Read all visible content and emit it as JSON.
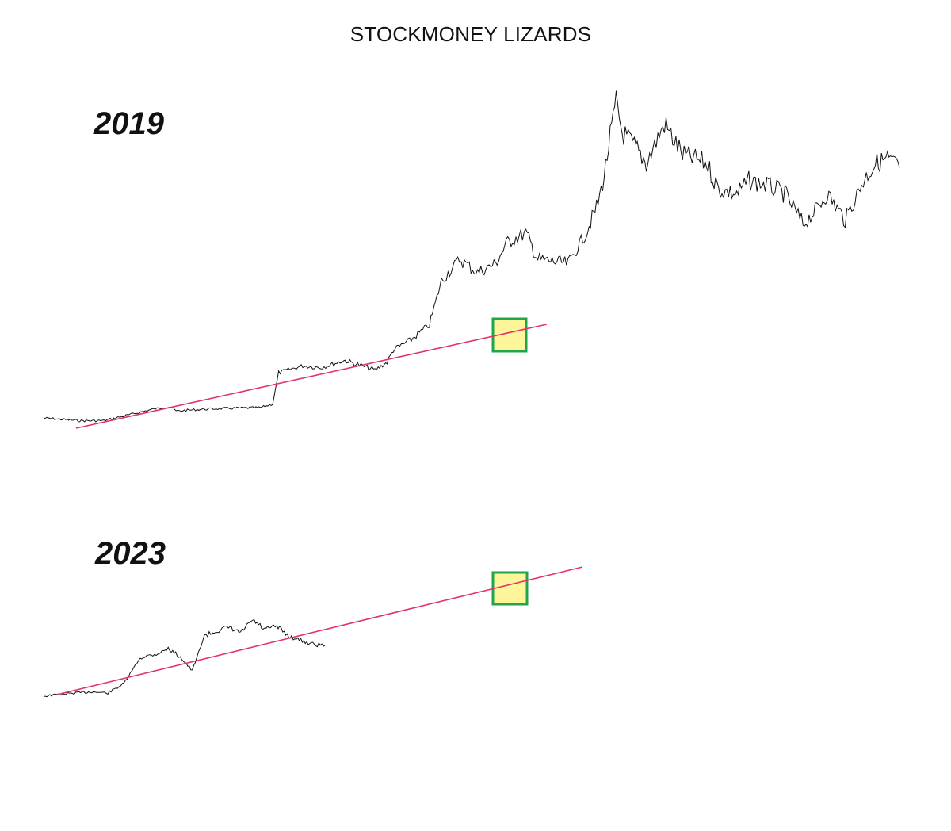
{
  "title": "STOCKMONEY LIZARDS",
  "colors": {
    "price_line": "#111111",
    "trend_line": "#e0336a",
    "box_fill": "#fdf59a",
    "box_stroke": "#1fa64a"
  },
  "chart_data": [
    {
      "type": "line",
      "label": "2019",
      "x": [
        0,
        0.06,
        0.1,
        0.15,
        0.18,
        0.21,
        0.22,
        0.26,
        0.3,
        0.36,
        0.38,
        0.39,
        0.43,
        0.46,
        0.5,
        0.55,
        0.57,
        0.58,
        0.61,
        0.64,
        0.66,
        0.69,
        0.72,
        0.75,
        0.77,
        0.8,
        0.82,
        0.87,
        0.9,
        0.92,
        0.93,
        0.94,
        0.95,
        0.96,
        0.98,
        1.0,
        1.03,
        1.06,
        1.1,
        1.12,
        1.15,
        1.17,
        1.2,
        1.23,
        1.26,
        1.28,
        1.3,
        1.33,
        1.36,
        1.38,
        1.4,
        1.42
      ],
      "values": [
        0.08,
        0.05,
        0.05,
        0.13,
        0.18,
        0.21,
        0.16,
        0.18,
        0.19,
        0.2,
        0.24,
        0.6,
        0.68,
        0.66,
        0.74,
        0.63,
        0.72,
        0.86,
        0.98,
        1.15,
        1.65,
        1.9,
        1.75,
        1.85,
        2.1,
        2.2,
        1.9,
        1.85,
        2.2,
        2.55,
        2.85,
        3.3,
        3.7,
        3.35,
        3.2,
        3.0,
        3.45,
        3.1,
        3.0,
        2.7,
        2.65,
        2.8,
        2.75,
        2.65,
        2.3,
        2.45,
        2.65,
        2.35,
        2.8,
        3.0,
        3.05,
        2.95
      ]
    },
    {
      "type": "line",
      "label": "2023",
      "x": [
        0,
        0.04,
        0.08,
        0.12,
        0.16,
        0.2,
        0.24,
        0.26,
        0.28,
        0.31,
        0.34,
        0.37,
        0.4,
        0.44,
        0.46,
        0.49,
        0.52,
        0.55,
        0.58,
        0.61,
        0.64,
        0.67,
        0.7
      ],
      "values": [
        0.0,
        0.03,
        0.05,
        0.07,
        0.05,
        0.2,
        0.6,
        0.64,
        0.66,
        0.75,
        0.62,
        0.4,
        0.95,
        1.05,
        1.08,
        1.0,
        1.2,
        1.05,
        1.1,
        0.95,
        0.88,
        0.82,
        0.8
      ]
    }
  ]
}
